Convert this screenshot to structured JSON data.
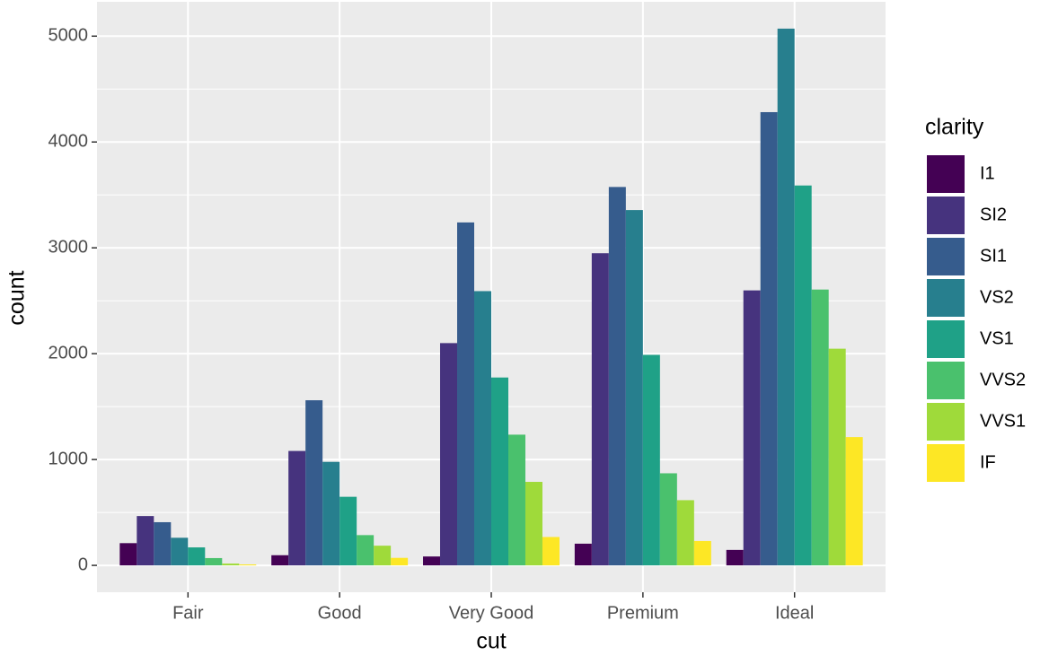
{
  "chart_data": {
    "type": "bar",
    "x_label": "cut",
    "y_label": "count",
    "legend_title": "clarity",
    "categories": [
      "Fair",
      "Good",
      "Very Good",
      "Premium",
      "Ideal"
    ],
    "series": [
      {
        "name": "I1",
        "color": "#440154",
        "values": [
          210,
          96,
          84,
          205,
          146
        ]
      },
      {
        "name": "SI2",
        "color": "#46337E",
        "values": [
          466,
          1081,
          2100,
          2949,
          2598
        ]
      },
      {
        "name": "SI1",
        "color": "#365C8D",
        "values": [
          408,
          1560,
          3240,
          3575,
          4282
        ]
      },
      {
        "name": "VS2",
        "color": "#277F8E",
        "values": [
          261,
          978,
          2591,
          3357,
          5071
        ]
      },
      {
        "name": "VS1",
        "color": "#1FA187",
        "values": [
          170,
          648,
          1775,
          1989,
          3589
        ]
      },
      {
        "name": "VVS2",
        "color": "#4AC16D",
        "values": [
          69,
          286,
          1235,
          870,
          2606
        ]
      },
      {
        "name": "VVS1",
        "color": "#9FDA3A",
        "values": [
          17,
          186,
          789,
          616,
          2047
        ]
      },
      {
        "name": "IF",
        "color": "#FDE725",
        "values": [
          9,
          71,
          268,
          230,
          1212
        ]
      }
    ],
    "ylim": [
      -253.55,
      5324.55
    ],
    "yticks": [
      0,
      1000,
      2000,
      3000,
      4000,
      5000
    ],
    "grid": true,
    "legend_position": "right"
  }
}
